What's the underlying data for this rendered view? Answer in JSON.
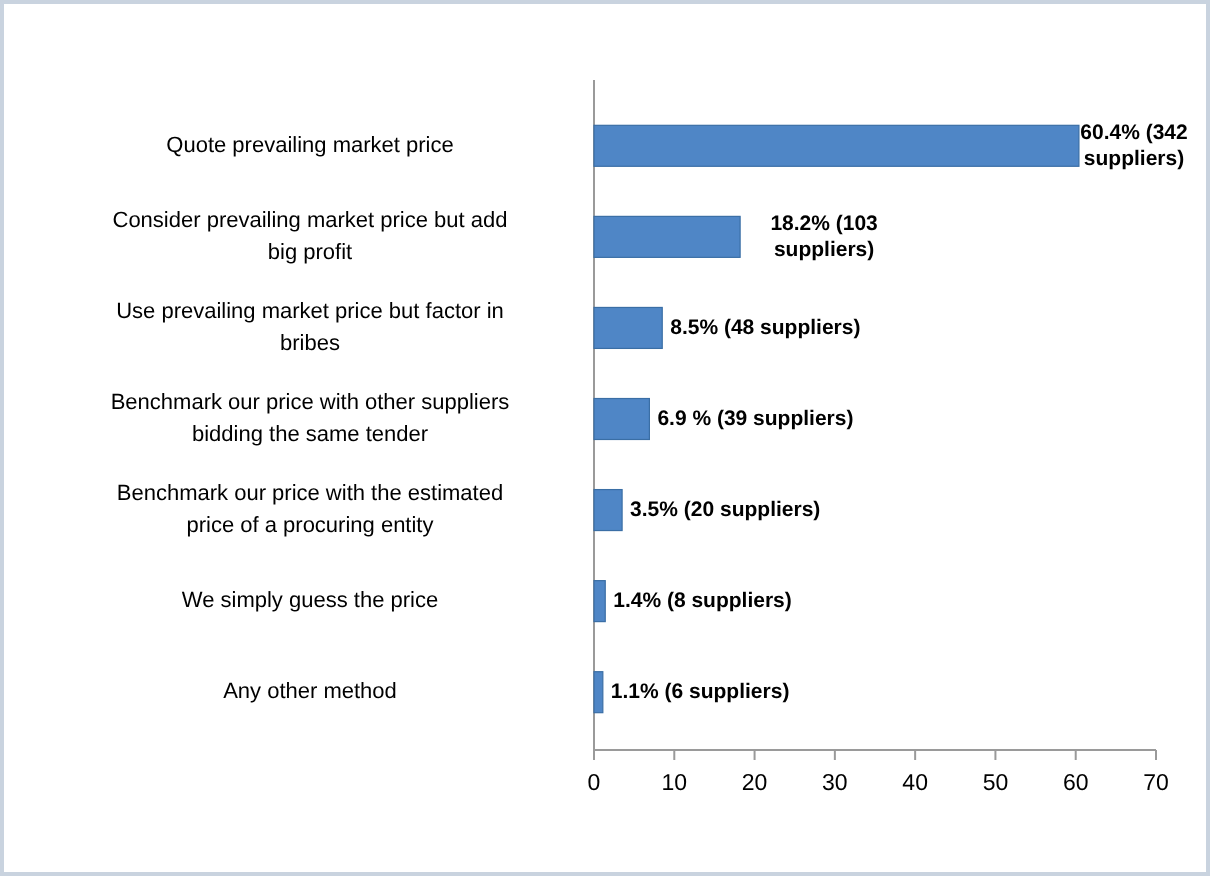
{
  "chart_data": {
    "type": "bar",
    "orientation": "horizontal",
    "categories": [
      "Quote prevailing market price",
      "Consider prevailing market price but add big profit",
      "Use prevailing market price but factor in bribes",
      "Benchmark our price with other suppliers bidding  the same tender",
      "Benchmark our price with the estimated price  of a procuring  entity",
      "We simply guess the price",
      "Any other method"
    ],
    "values": [
      60.4,
      18.2,
      8.5,
      6.9,
      3.5,
      1.4,
      1.1
    ],
    "value_labels": [
      "60.4% (342 suppliers)",
      "18.2% (103 suppliers)",
      "8.5% (48 suppliers)",
      "6.9 % (39 suppliers)",
      "3.5% (20 suppliers)",
      "1.4% (8 suppliers)",
      "1.1% (6 suppliers)"
    ],
    "color": "#4f86c6",
    "xlim": [
      0,
      70
    ],
    "xticks": [
      0,
      10,
      20,
      30,
      40,
      50,
      60,
      70
    ],
    "grid": false
  }
}
